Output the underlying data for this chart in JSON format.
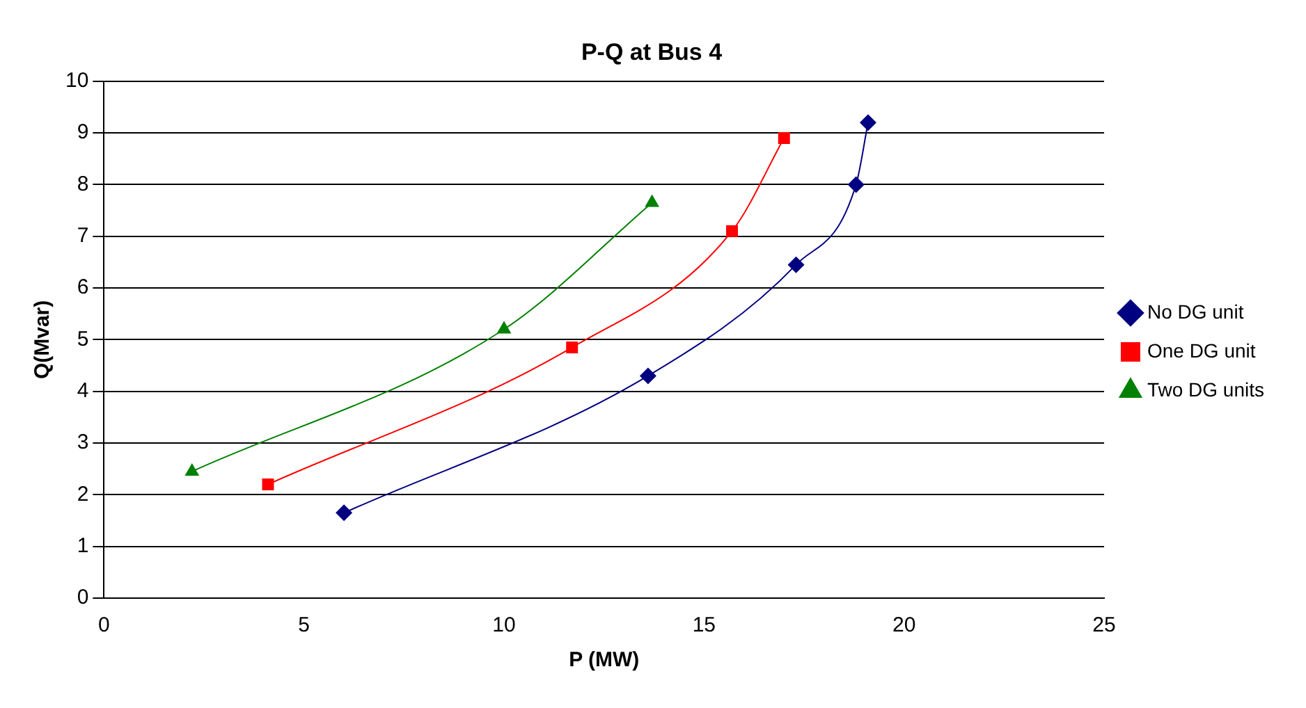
{
  "chart_data": {
    "type": "line",
    "title": "P-Q at Bus 4",
    "xlabel": "P (MW)",
    "ylabel": "Q(Mvar)",
    "series": [
      {
        "name": "No DG unit",
        "color": "#000080",
        "marker": "diamond",
        "x": [
          6.0,
          13.6,
          17.3,
          18.8,
          19.1
        ],
        "values": [
          1.65,
          4.3,
          6.45,
          8.0,
          9.2
        ]
      },
      {
        "name": "One DG unit",
        "color": "#ff0000",
        "marker": "square",
        "x": [
          4.1,
          11.7,
          15.7,
          17.0
        ],
        "values": [
          2.2,
          4.85,
          7.1,
          8.9
        ]
      },
      {
        "name": "Two DG units",
        "color": "#008000",
        "marker": "triangle",
        "x": [
          2.2,
          10.0,
          13.7
        ],
        "values": [
          2.45,
          5.2,
          7.65
        ]
      }
    ],
    "xlim": [
      0,
      25
    ],
    "xticks": [
      0,
      5,
      10,
      15,
      20,
      25
    ],
    "ylim": [
      0,
      10
    ],
    "yticks": [
      0,
      1,
      2,
      3,
      4,
      5,
      6,
      7,
      8,
      9,
      10
    ],
    "grid": "y",
    "legend": "right"
  }
}
